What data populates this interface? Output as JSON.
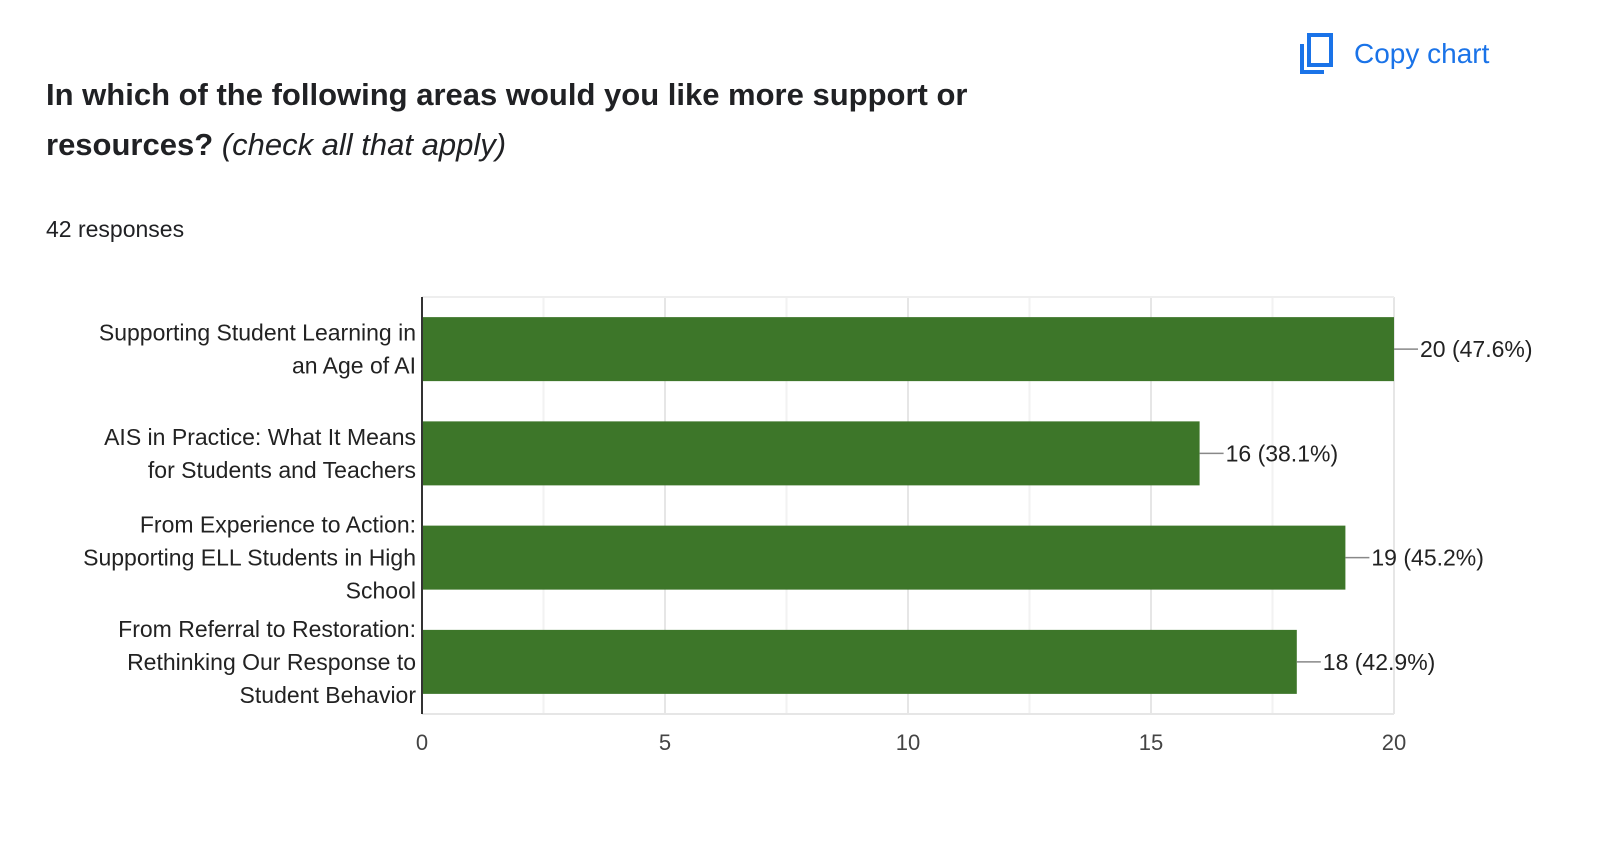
{
  "header": {
    "title_bold": "In which of the following areas would you like more support or resources?",
    "title_italic": "(check all that apply)",
    "responses": "42 responses",
    "copy_chart_label": "Copy chart",
    "copy_icon": "copy-icon"
  },
  "colors": {
    "bar": "#3d7629",
    "accent": "#1a73e8"
  },
  "chart_data": {
    "type": "bar",
    "orientation": "horizontal",
    "categories": [
      [
        "Supporting Student Learning in",
        "an Age of AI"
      ],
      [
        "AIS in Practice: What It Means",
        "for Students and Teachers"
      ],
      [
        "From Experience to Action:",
        "Supporting ELL Students in High",
        "School"
      ],
      [
        "From Referral to Restoration:",
        "Rethinking Our Response to",
        "Student Behavior"
      ]
    ],
    "values": [
      20,
      16,
      19,
      18
    ],
    "data_labels": [
      "20 (47.6%)",
      "16 (38.1%)",
      "19 (45.2%)",
      "18 (42.9%)"
    ],
    "xlim": [
      0,
      20
    ],
    "xticks": [
      "0",
      "5",
      "10",
      "15",
      "20"
    ],
    "grid": true
  }
}
